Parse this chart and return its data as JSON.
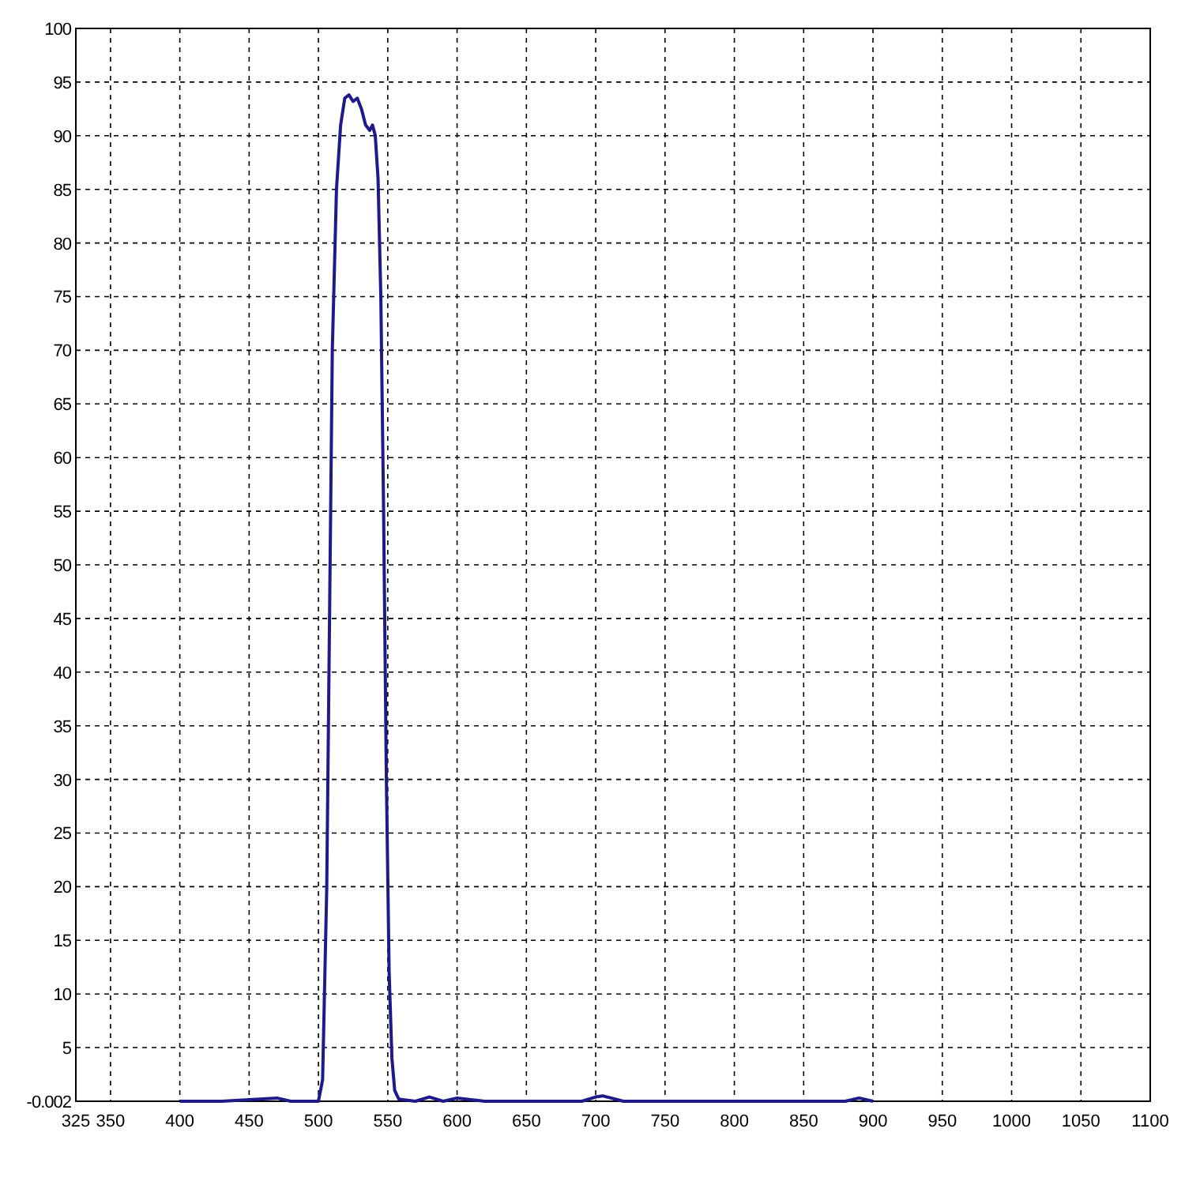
{
  "chart_data": {
    "type": "line",
    "xlim": [
      325,
      1100
    ],
    "ylim": [
      -0.002,
      100
    ],
    "xticks": [
      325,
      350,
      400,
      450,
      500,
      550,
      600,
      650,
      700,
      750,
      800,
      850,
      900,
      950,
      1000,
      1050,
      1100
    ],
    "yticks": [
      -0.002,
      5,
      10,
      15,
      20,
      25,
      30,
      35,
      40,
      45,
      50,
      55,
      60,
      65,
      70,
      75,
      80,
      85,
      90,
      95,
      100
    ],
    "grid": true,
    "line_style": "solid",
    "marker": "none",
    "series": [
      {
        "color": "#1f1a8a",
        "x": [
          400,
          430,
          470,
          480,
          500,
          503,
          506,
          508,
          510,
          513,
          516,
          519,
          522,
          525,
          528,
          531,
          534,
          537,
          539,
          541,
          543,
          545,
          547,
          549,
          551,
          553,
          555,
          558,
          570,
          580,
          590,
          600,
          620,
          690,
          700,
          705,
          720,
          880,
          890,
          900
        ],
        "values": [
          0,
          0,
          0.3,
          0,
          0,
          2,
          20,
          45,
          70,
          85,
          91,
          93.5,
          93.8,
          93.2,
          93.5,
          92.5,
          91,
          90.5,
          91,
          90,
          86,
          75,
          55,
          30,
          12,
          4,
          1,
          0.2,
          0,
          0.4,
          0,
          0.3,
          0,
          0,
          0.4,
          0.5,
          0,
          0,
          0.3,
          0
        ]
      }
    ]
  }
}
